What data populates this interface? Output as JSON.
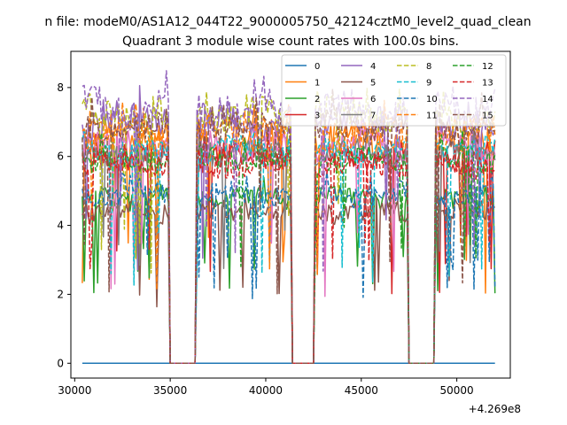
{
  "chart_data": {
    "type": "line",
    "suptitle": "n file: modeM0/AS1A12_044T22_9000005750_42124cztM0_level2_quad_clean",
    "title": "Quadrant 3 module wise count rates with 100.0s bins.",
    "xlabel": "",
    "ylabel": "",
    "x_offset_label": "+4.269e8",
    "xlim": [
      29800,
      52800
    ],
    "ylim": [
      -0.43,
      9.05
    ],
    "x_ticks": [
      30000,
      35000,
      40000,
      45000,
      50000
    ],
    "x_tick_labels": [
      "30000",
      "35000",
      "40000",
      "45000",
      "50000"
    ],
    "y_ticks": [
      0,
      2,
      4,
      6,
      8
    ],
    "y_tick_labels": [
      "0",
      "2",
      "4",
      "6",
      "8"
    ],
    "legend_position": "top-right",
    "x_start": 30400,
    "x_end": 52000,
    "bin_seconds": 100,
    "gaps": [
      [
        35000,
        36300
      ],
      [
        41400,
        42500
      ],
      [
        47500,
        48800
      ]
    ],
    "series": [
      {
        "name": "0",
        "color": "#1f77b4",
        "dashed": false,
        "level": 0.0,
        "spread": 0.0
      },
      {
        "name": "1",
        "color": "#ff7f0e",
        "dashed": false,
        "level": 6.5,
        "spread": 0.45
      },
      {
        "name": "2",
        "color": "#2ca02c",
        "dashed": false,
        "level": 4.8,
        "spread": 0.3
      },
      {
        "name": "3",
        "color": "#d62728",
        "dashed": false,
        "level": 6.0,
        "spread": 0.35
      },
      {
        "name": "4",
        "color": "#9467bd",
        "dashed": false,
        "level": 7.0,
        "spread": 0.45
      },
      {
        "name": "5",
        "color": "#8c564b",
        "dashed": false,
        "level": 4.4,
        "spread": 0.3
      },
      {
        "name": "6",
        "color": "#e377c2",
        "dashed": false,
        "level": 6.3,
        "spread": 0.4
      },
      {
        "name": "7",
        "color": "#7f7f7f",
        "dashed": false,
        "level": 6.1,
        "spread": 0.35
      },
      {
        "name": "8",
        "color": "#bcbd22",
        "dashed": true,
        "level": 7.2,
        "spread": 0.45
      },
      {
        "name": "9",
        "color": "#17becf",
        "dashed": true,
        "level": 6.2,
        "spread": 0.35
      },
      {
        "name": "10",
        "color": "#1f77b4",
        "dashed": true,
        "level": 4.9,
        "spread": 0.3
      },
      {
        "name": "11",
        "color": "#ff7f0e",
        "dashed": true,
        "level": 6.6,
        "spread": 0.45
      },
      {
        "name": "12",
        "color": "#2ca02c",
        "dashed": true,
        "level": 5.9,
        "spread": 0.35
      },
      {
        "name": "13",
        "color": "#d62728",
        "dashed": true,
        "level": 5.8,
        "spread": 0.35
      },
      {
        "name": "14",
        "color": "#9467bd",
        "dashed": true,
        "level": 7.4,
        "spread": 0.5
      },
      {
        "name": "15",
        "color": "#8c564b",
        "dashed": true,
        "level": 6.8,
        "spread": 0.45
      }
    ]
  }
}
